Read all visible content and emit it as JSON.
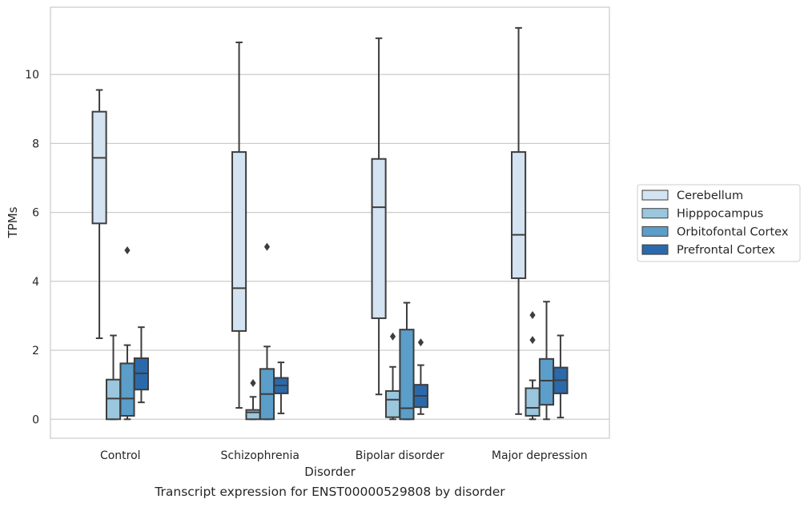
{
  "caption": "Transcript expression for ENST00000529808 by disorder",
  "chart_data": {
    "type": "box",
    "title": "",
    "xlabel": "Disorder",
    "ylabel": "TPMs",
    "categories": [
      "Control",
      "Schizophrenia",
      "Bipolar disorder",
      "Major depression"
    ],
    "ylim": [
      -0.55,
      11.95
    ],
    "yticks": [
      0,
      2,
      4,
      6,
      8,
      10
    ],
    "grid": true,
    "legend_position": "right",
    "series": [
      {
        "name": "Cerebellum",
        "color": "#d4e3f2",
        "boxes": [
          {
            "whislo": 2.35,
            "q1": 5.68,
            "med": 7.58,
            "q3": 8.92,
            "whishi": 9.55,
            "fliers": []
          },
          {
            "whislo": 0.33,
            "q1": 2.56,
            "med": 3.8,
            "q3": 7.75,
            "whishi": 10.93,
            "fliers": []
          },
          {
            "whislo": 0.72,
            "q1": 2.93,
            "med": 6.15,
            "q3": 7.55,
            "whishi": 11.05,
            "fliers": []
          },
          {
            "whislo": 0.15,
            "q1": 4.09,
            "med": 5.35,
            "q3": 7.75,
            "whishi": 11.35,
            "fliers": []
          }
        ]
      },
      {
        "name": "Hipppocampus",
        "color": "#9ac6de",
        "boxes": [
          {
            "whislo": 0.0,
            "q1": 0.0,
            "med": 0.6,
            "q3": 1.15,
            "whishi": 2.43,
            "fliers": []
          },
          {
            "whislo": 0.0,
            "q1": 0.0,
            "med": 0.2,
            "q3": 0.27,
            "whishi": 0.65,
            "fliers": [
              1.05
            ]
          },
          {
            "whislo": 0.0,
            "q1": 0.06,
            "med": 0.57,
            "q3": 0.82,
            "whishi": 1.52,
            "fliers": [
              2.4
            ]
          },
          {
            "whislo": 0.0,
            "q1": 0.1,
            "med": 0.33,
            "q3": 0.9,
            "whishi": 1.13,
            "fliers": [
              2.3,
              3.02
            ]
          }
        ]
      },
      {
        "name": "Orbitofontal Cortex",
        "color": "#5a9ec9",
        "boxes": [
          {
            "whislo": 0.0,
            "q1": 0.1,
            "med": 0.6,
            "q3": 1.62,
            "whishi": 2.15,
            "fliers": [
              4.9
            ]
          },
          {
            "whislo": 0.0,
            "q1": 0.0,
            "med": 0.73,
            "q3": 1.46,
            "whishi": 2.11,
            "fliers": [
              5.0
            ]
          },
          {
            "whislo": 0.0,
            "q1": 0.0,
            "med": 0.32,
            "q3": 2.6,
            "whishi": 3.38,
            "fliers": []
          },
          {
            "whislo": 0.0,
            "q1": 0.42,
            "med": 1.12,
            "q3": 1.75,
            "whishi": 3.41,
            "fliers": []
          }
        ]
      },
      {
        "name": "Prefrontal Cortex",
        "color": "#2c69ab",
        "boxes": [
          {
            "whislo": 0.49,
            "q1": 0.86,
            "med": 1.33,
            "q3": 1.77,
            "whishi": 2.67,
            "fliers": []
          },
          {
            "whislo": 0.17,
            "q1": 0.75,
            "med": 0.98,
            "q3": 1.2,
            "whishi": 1.65,
            "fliers": []
          },
          {
            "whislo": 0.15,
            "q1": 0.35,
            "med": 0.68,
            "q3": 1.0,
            "whishi": 1.57,
            "fliers": [
              2.23
            ]
          },
          {
            "whislo": 0.05,
            "q1": 0.75,
            "med": 1.13,
            "q3": 1.5,
            "whishi": 2.43,
            "fliers": []
          }
        ]
      }
    ]
  }
}
